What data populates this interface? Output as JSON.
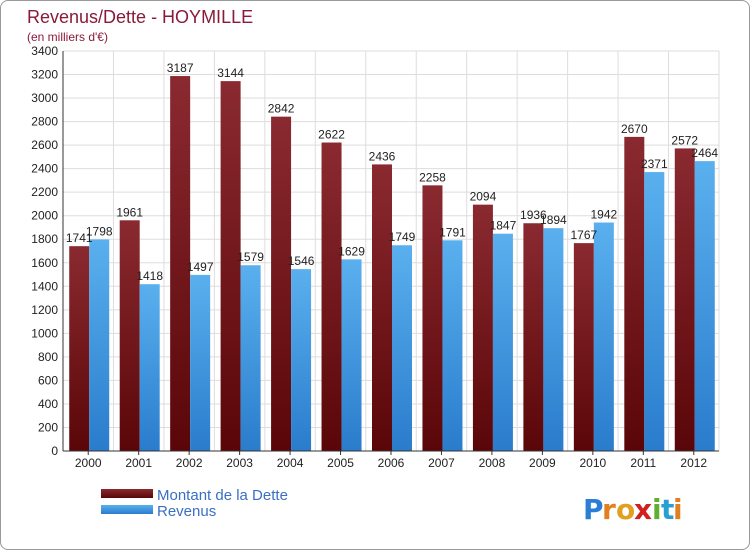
{
  "chart_data": {
    "type": "bar",
    "title": "Revenus/Dette - HOYMILLE",
    "subtitle": "(en milliers d'€)",
    "categories": [
      "2000",
      "2001",
      "2002",
      "2003",
      "2004",
      "2005",
      "2006",
      "2007",
      "2008",
      "2009",
      "2010",
      "2011",
      "2012"
    ],
    "series": [
      {
        "name": "Montant de la Dette",
        "color": "#7a1418",
        "values": [
          1741,
          1961,
          3187,
          3144,
          2842,
          2622,
          2436,
          2258,
          2094,
          1936,
          1767,
          2670,
          2572
        ]
      },
      {
        "name": "Revenus",
        "color": "#4a9fe0",
        "values": [
          1798,
          1418,
          1497,
          1579,
          1546,
          1629,
          1749,
          1791,
          1847,
          1894,
          1942,
          2371,
          2464
        ]
      }
    ],
    "ylim": [
      0,
      3400
    ],
    "yticks": [
      0,
      200,
      400,
      600,
      800,
      1000,
      1200,
      1400,
      1600,
      1800,
      2000,
      2200,
      2400,
      2600,
      2800,
      3000,
      3200,
      3400
    ],
    "grid": true,
    "legend": "bottom-left"
  },
  "logo": {
    "letters": [
      "P",
      "r",
      "o",
      "x",
      "i",
      "t",
      "i"
    ],
    "colors": [
      "#2a7fd4",
      "#e08020",
      "#e0a020",
      "#d02020",
      "#60b030",
      "#2a9fd4",
      "#e08020"
    ]
  }
}
